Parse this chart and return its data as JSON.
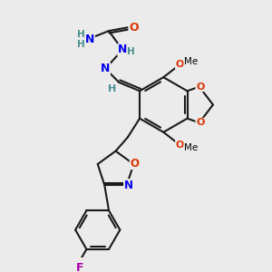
{
  "bg_color": "#ebebeb",
  "bond_color": "#1a1a1a",
  "bond_width": 1.5,
  "atom_colors": {
    "C": "#000000",
    "N": "#0000ee",
    "O": "#dd3300",
    "F": "#aa00aa",
    "H": "#4a9090"
  }
}
